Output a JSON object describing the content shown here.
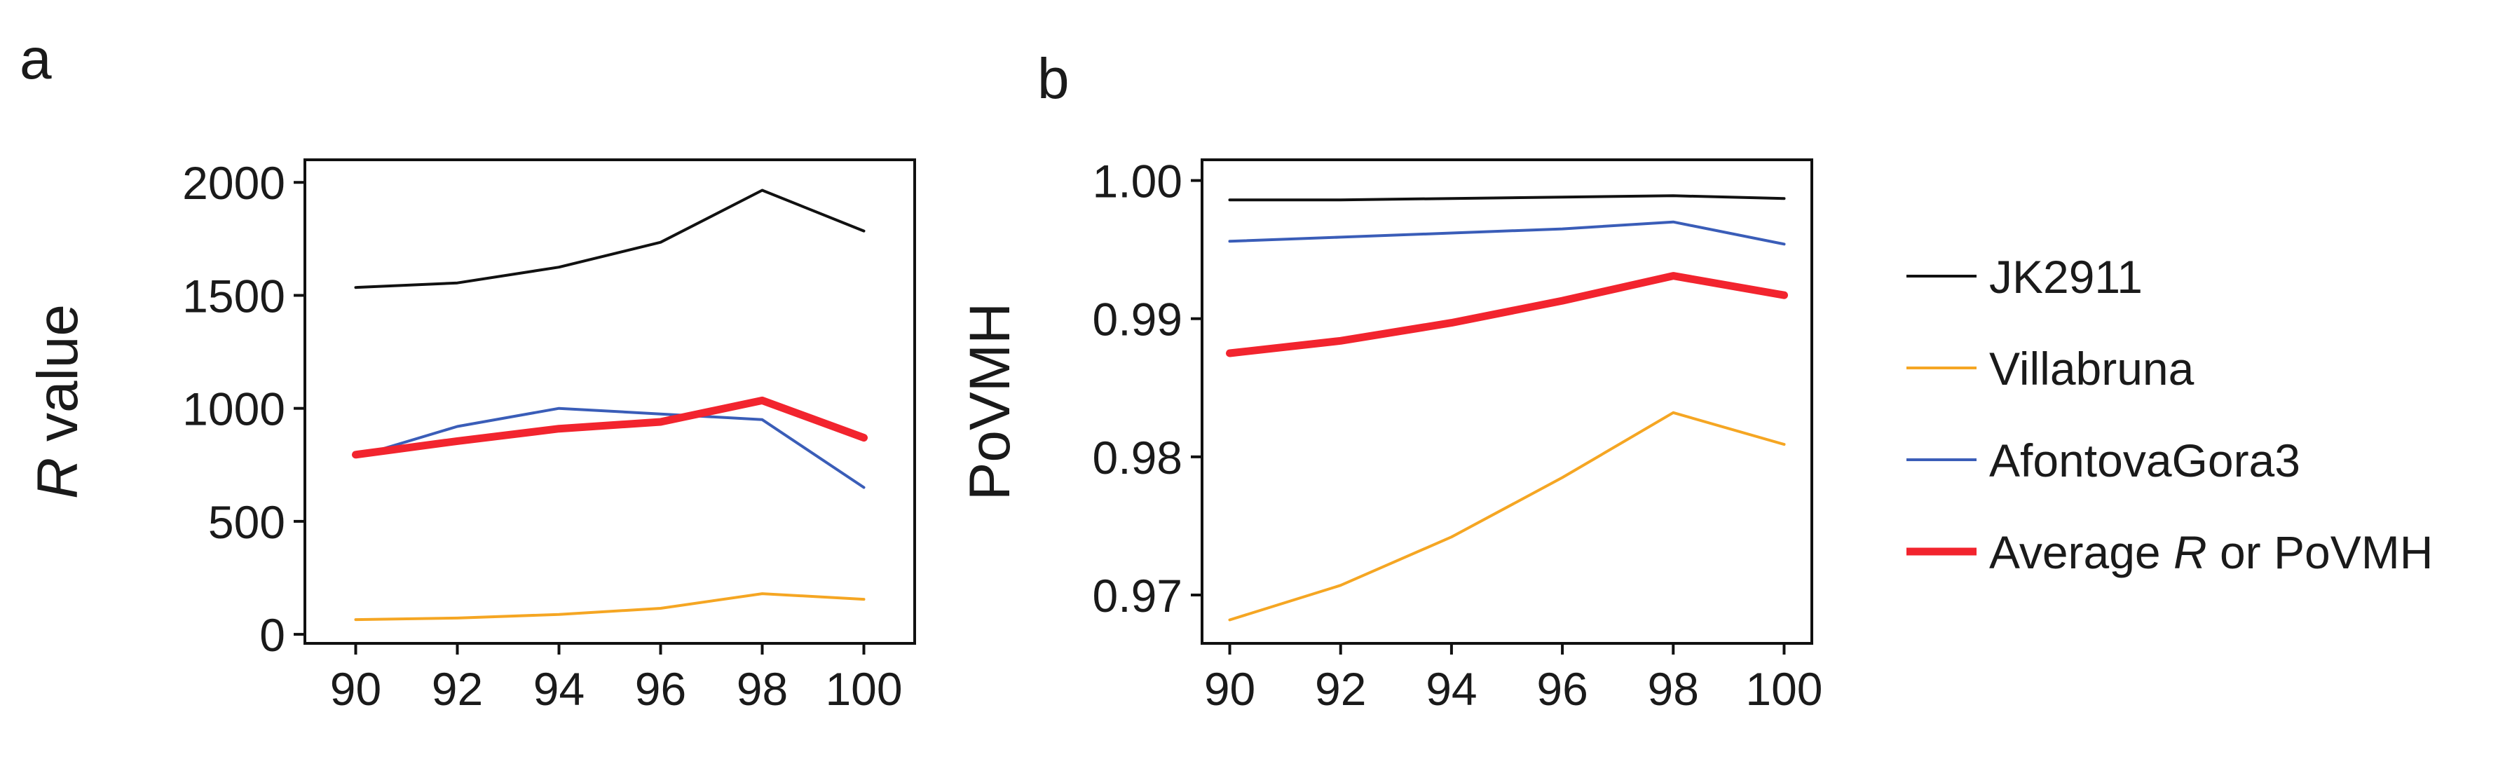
{
  "panels": [
    "a",
    "b"
  ],
  "chart_data": [
    {
      "panel": "a",
      "type": "line",
      "xlabel": "",
      "ylabel": {
        "italic": "R",
        "rest": " value"
      },
      "ylim": [
        -40,
        2100
      ],
      "xlim": [
        89,
        101
      ],
      "yticks": [
        0,
        500,
        1000,
        1500,
        2000
      ],
      "ytick_labels": [
        "0",
        "500",
        "1000",
        "1500",
        "2000"
      ],
      "xticks": [
        90,
        92,
        94,
        96,
        98,
        100
      ],
      "xtick_labels": [
        "90",
        "92",
        "94",
        "96",
        "98",
        "100"
      ],
      "grid": false,
      "series": [
        {
          "name": "JK2911",
          "color": "#111111",
          "width": 4,
          "x": [
            90,
            92,
            94,
            96,
            98,
            100
          ],
          "values": [
            1535,
            1555,
            1625,
            1735,
            1965,
            1785
          ]
        },
        {
          "name": "Villabruna",
          "color": "#F5A623",
          "width": 4,
          "x": [
            90,
            92,
            94,
            96,
            98,
            100
          ],
          "values": [
            65,
            72,
            88,
            115,
            180,
            155
          ]
        },
        {
          "name": "AfontovaGora3",
          "color": "#3A5DB8",
          "width": 4,
          "x": [
            90,
            92,
            94,
            96,
            98,
            100
          ],
          "values": [
            785,
            920,
            1000,
            975,
            950,
            650
          ]
        },
        {
          "name": "Average R or PoVMH",
          "color": "#F2242E",
          "width": 11,
          "x": [
            90,
            92,
            94,
            96,
            98,
            100
          ],
          "values": [
            795,
            855,
            910,
            940,
            1035,
            870
          ]
        }
      ]
    },
    {
      "panel": "b",
      "type": "line",
      "xlabel": "",
      "ylabel": {
        "italic": "",
        "rest": "PoVMH"
      },
      "ylim": [
        0.9665,
        1.0015
      ],
      "xlim": [
        89.5,
        100.5
      ],
      "yticks": [
        0.97,
        0.98,
        0.99,
        1.0
      ],
      "ytick_labels": [
        "0.97",
        "0.98",
        "0.99",
        "1.00"
      ],
      "xticks": [
        90,
        92,
        94,
        96,
        98,
        100
      ],
      "xtick_labels": [
        "90",
        "92",
        "94",
        "96",
        "98",
        "100"
      ],
      "grid": false,
      "series": [
        {
          "name": "JK2911",
          "color": "#111111",
          "width": 4,
          "x": [
            90,
            92,
            94,
            96,
            98,
            100
          ],
          "values": [
            0.9986,
            0.9986,
            0.9987,
            0.9988,
            0.9989,
            0.9987
          ]
        },
        {
          "name": "Villabruna",
          "color": "#F5A623",
          "width": 4,
          "x": [
            90,
            92,
            94,
            96,
            98,
            100
          ],
          "values": [
            0.9682,
            0.9707,
            0.9742,
            0.9785,
            0.9832,
            0.9809
          ]
        },
        {
          "name": "AfontovaGora3",
          "color": "#3A5DB8",
          "width": 4,
          "x": [
            90,
            92,
            94,
            96,
            98,
            100
          ],
          "values": [
            0.9956,
            0.9959,
            0.9962,
            0.9965,
            0.997,
            0.9954
          ]
        },
        {
          "name": "Average R or PoVMH",
          "color": "#F2242E",
          "width": 11,
          "x": [
            90,
            92,
            94,
            96,
            98,
            100
          ],
          "values": [
            0.9875,
            0.9884,
            0.9897,
            0.9913,
            0.9931,
            0.9917
          ]
        }
      ]
    }
  ],
  "legend": {
    "placement": "right",
    "items": [
      {
        "parts": [
          {
            "text": "JK2911",
            "italic": false
          }
        ],
        "color": "#111111",
        "width": 4
      },
      {
        "parts": [
          {
            "text": "Villabruna",
            "italic": false
          }
        ],
        "color": "#F5A623",
        "width": 4
      },
      {
        "parts": [
          {
            "text": "AfontovaGora3",
            "italic": false
          }
        ],
        "color": "#3A5DB8",
        "width": 4
      },
      {
        "parts": [
          {
            "text": "Average ",
            "italic": false
          },
          {
            "text": "R",
            "italic": true
          },
          {
            "text": " or PoVMH",
            "italic": false
          }
        ],
        "color": "#F2242E",
        "width": 11
      }
    ]
  }
}
